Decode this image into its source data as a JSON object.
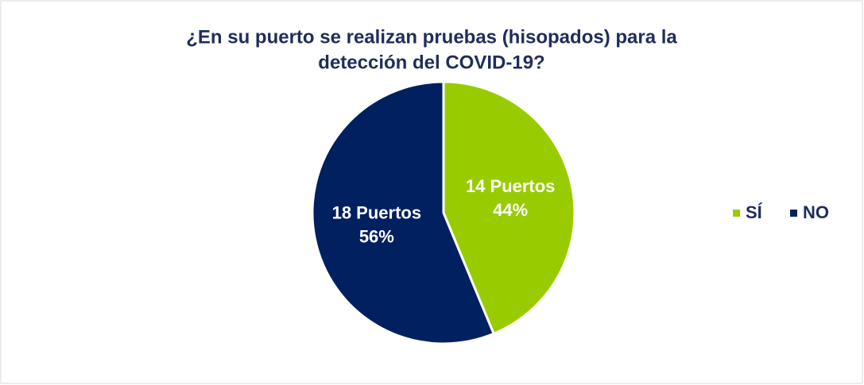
{
  "chart_data": {
    "type": "pie",
    "title": [
      "¿En su puerto se realizan pruebas (hisopados) para la",
      "detección del COVID-19?"
    ],
    "categories": [
      "SÍ",
      "NO"
    ],
    "values": [
      14,
      18
    ],
    "value_labels": [
      "14 Puertos",
      "18 Puertos"
    ],
    "percent_labels": [
      "44%",
      "56%"
    ],
    "colors": [
      "#99cc00",
      "#002060"
    ],
    "legend": "right"
  }
}
